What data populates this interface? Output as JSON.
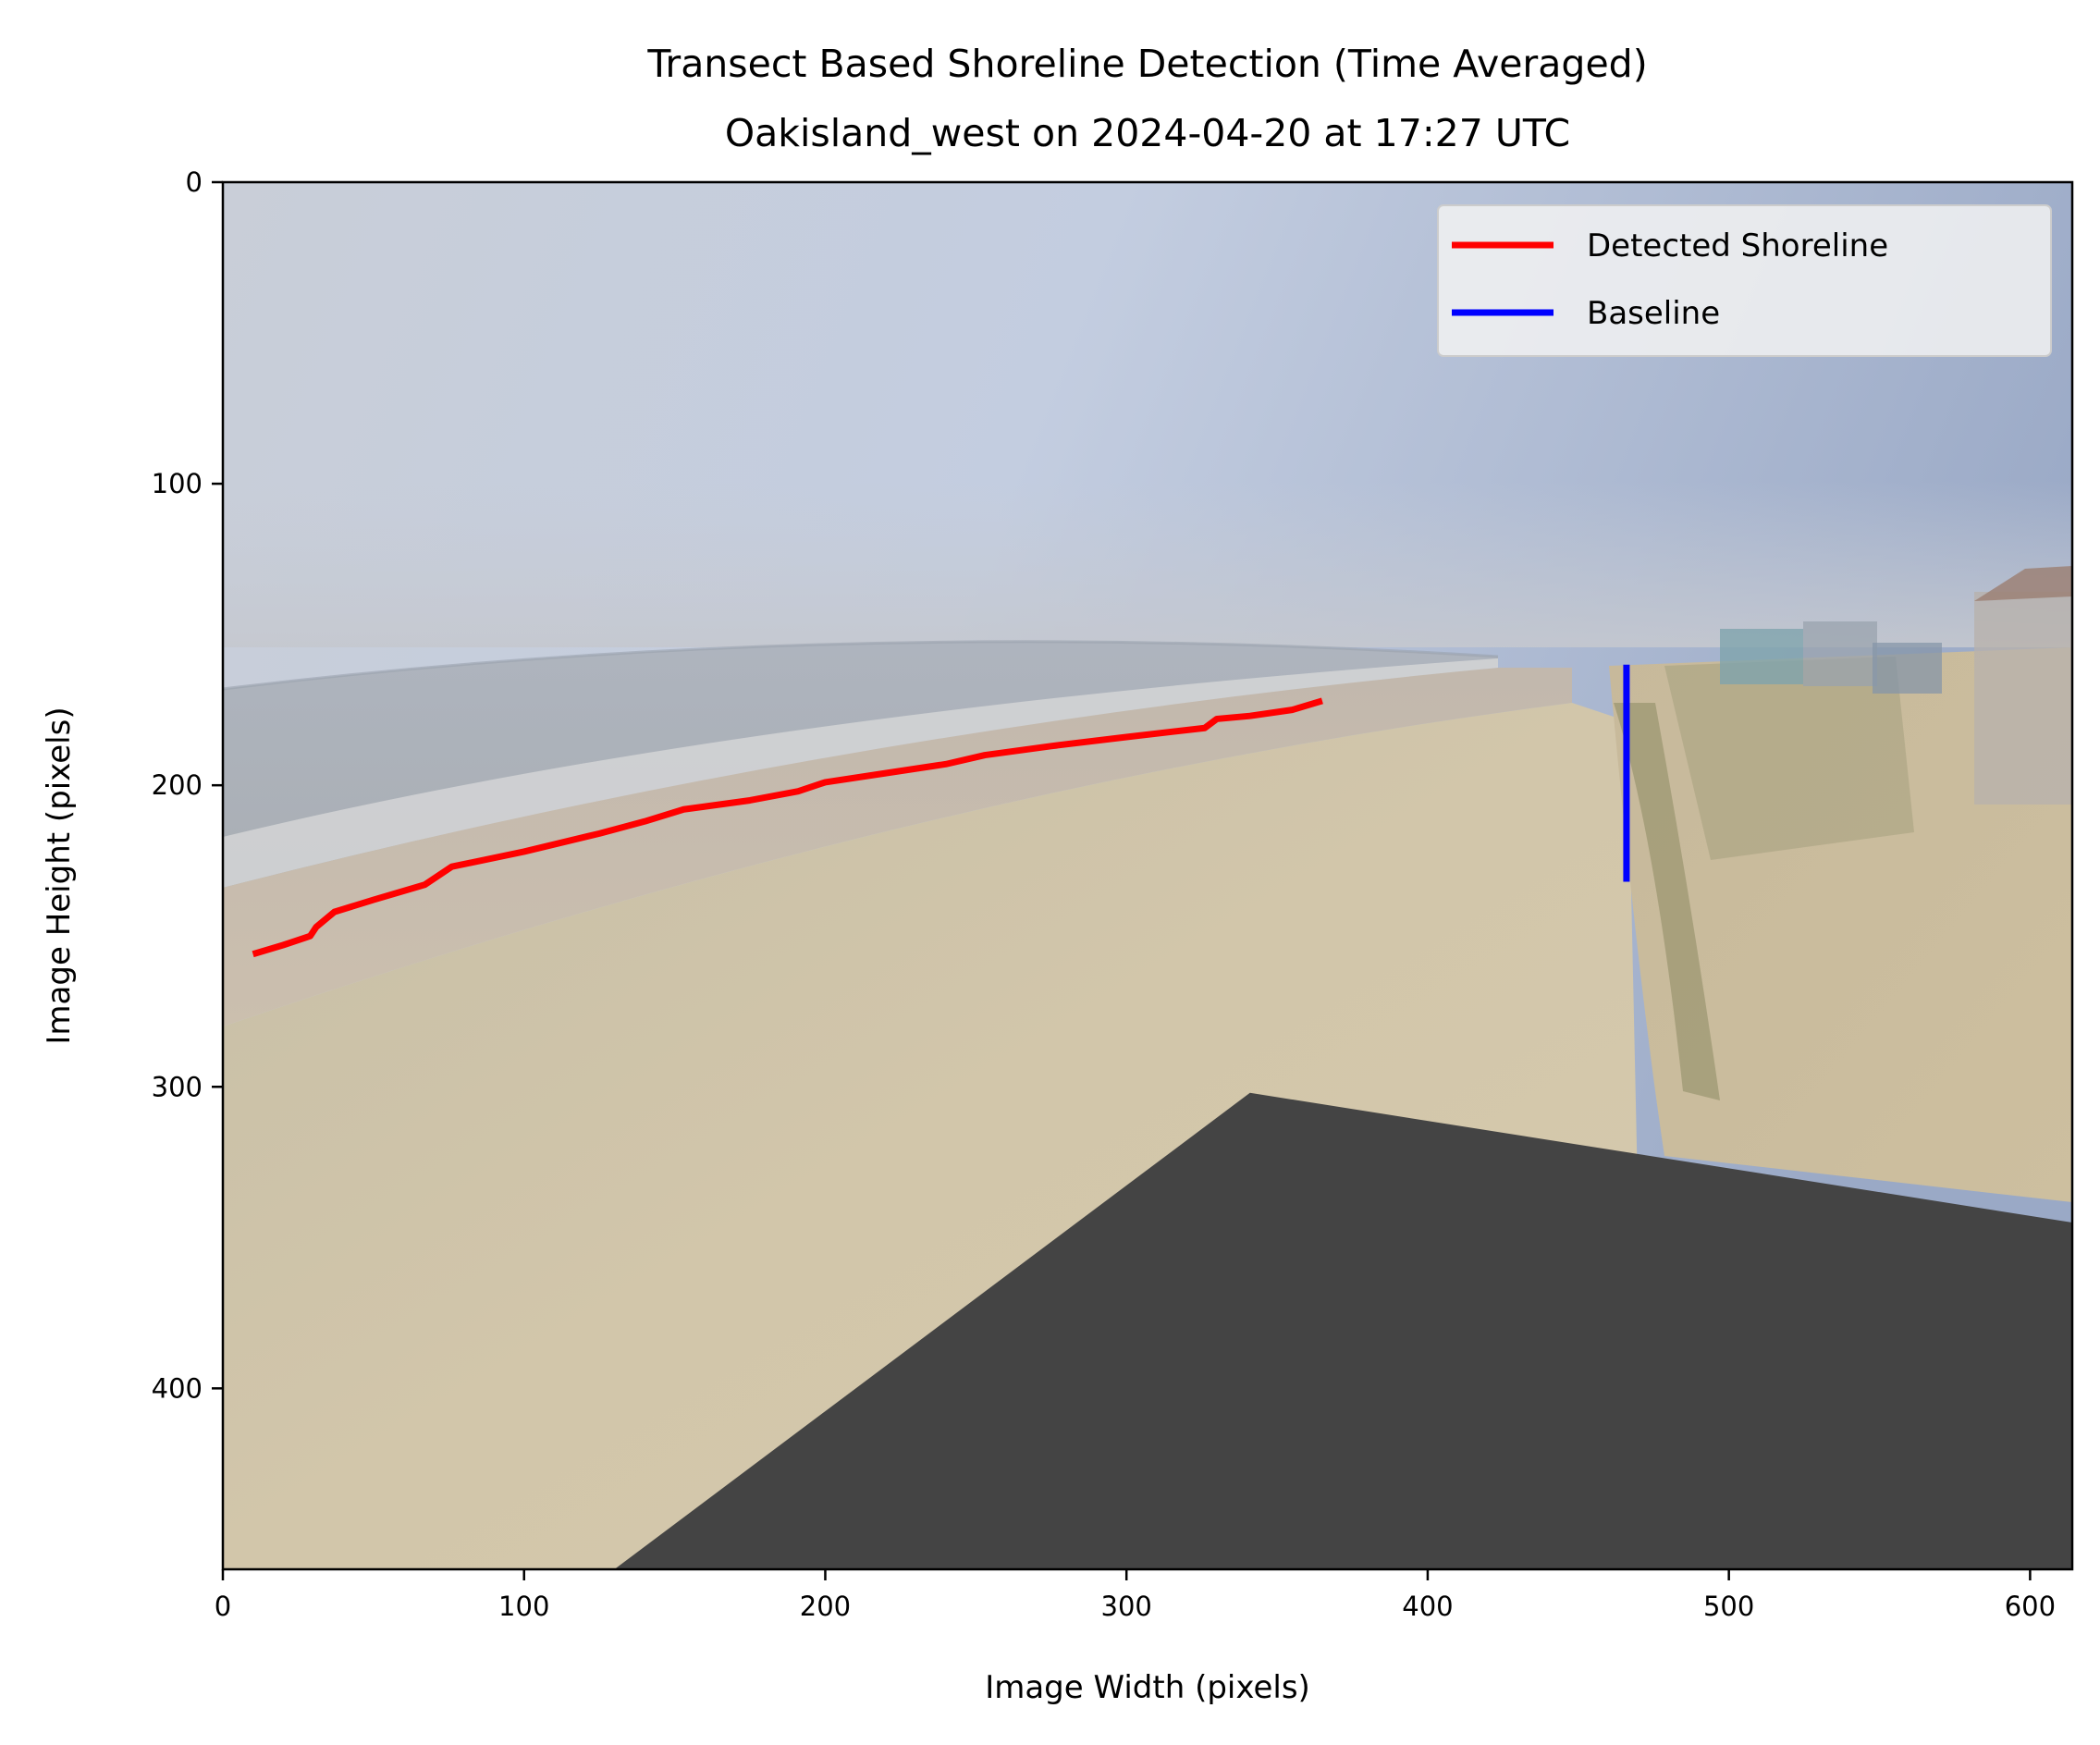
{
  "chart_data": {
    "type": "line",
    "title": "Transect Based Shoreline Detection (Time Averaged)\nOakisland_west on 2024-04-20 at 17:27 UTC",
    "title_lines": [
      "Transect Based Shoreline Detection (Time Averaged)",
      "Oakisland_west on 2024-04-20 at 17:27 UTC"
    ],
    "xlabel": "Image Width (pixels)",
    "ylabel": "Image Height (pixels)",
    "xlim": [
      0,
      614
    ],
    "ylim": [
      460,
      0
    ],
    "y_inverted": true,
    "grid": false,
    "legend_placement": "top-right",
    "xticks": [
      0,
      100,
      200,
      300,
      400,
      500,
      600
    ],
    "yticks": [
      0,
      100,
      200,
      300,
      400
    ],
    "background_image": "beach webcam photo with fog, ocean at left, sandy beach, dunes and houses at right, dark grey masked polygon at bottom right",
    "mask_polygon": [
      [
        341,
        302
      ],
      [
        614,
        345
      ],
      [
        614,
        460
      ],
      [
        130,
        460
      ]
    ],
    "series": [
      {
        "name": "Detected Shoreline",
        "color": "#ff0000",
        "x": [
          10,
          20,
          29,
          31,
          37,
          50,
          67,
          76,
          100,
          125,
          140,
          153,
          175,
          191,
          200,
          220,
          240,
          253,
          275,
          300,
          326,
          330,
          341,
          355,
          365
        ],
        "y": [
          256,
          253,
          250,
          247,
          242,
          238,
          233,
          227,
          222,
          216,
          212,
          208,
          205,
          202,
          199,
          196,
          193,
          190,
          187,
          184,
          181,
          178,
          177,
          175,
          172
        ]
      },
      {
        "name": "Baseline",
        "color": "#0000ff",
        "x": [
          466,
          466
        ],
        "y": [
          160,
          232
        ]
      }
    ]
  }
}
